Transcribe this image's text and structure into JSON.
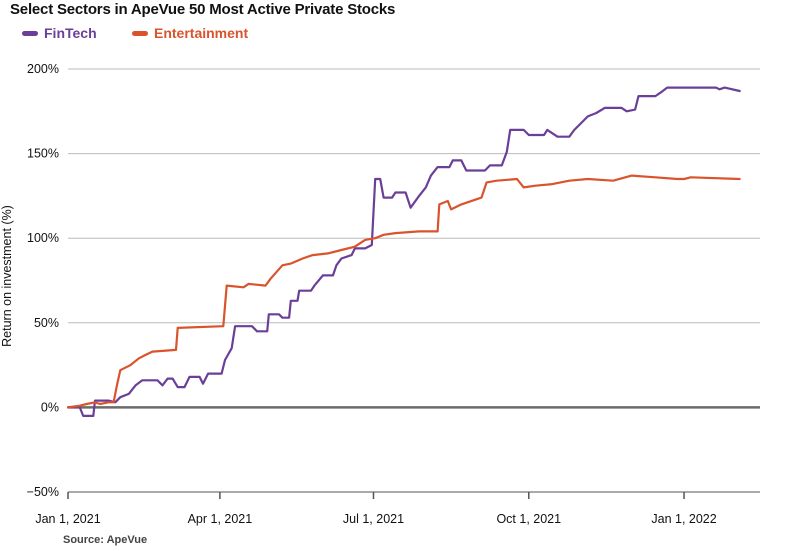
{
  "colors": {
    "fintech": "#6b3f98",
    "entertainment": "#d9542c",
    "grid": "#bbbbbb",
    "zero": "#6b6b6b",
    "axis": "#555555"
  },
  "chart_data": {
    "type": "line",
    "title": "Select Sectors in ApeVue 50 Most Active Private Stocks",
    "ylabel": "Return on investment (%)",
    "xlabel": "",
    "source": "Source: ApeVue",
    "ylim": [
      -50,
      200
    ],
    "xlim": [
      "2021-01-01",
      "2022-02-15"
    ],
    "y_ticks": [
      -50,
      0,
      50,
      100,
      150,
      200
    ],
    "y_tick_labels": [
      "−50%",
      "0%",
      "50%",
      "100%",
      "150%",
      "200%"
    ],
    "x_ticks": [
      "2021-01-01",
      "2021-04-01",
      "2021-07-01",
      "2021-10-01",
      "2022-01-01"
    ],
    "x_tick_labels": [
      "Jan 1, 2021",
      "Apr 1, 2021",
      "Jul 1, 2021",
      "Oct 1, 2021",
      "Jan 1, 2022"
    ],
    "grid": true,
    "legend_position": "top-left",
    "series": [
      {
        "name": "FinTech",
        "color": "#6b3f98",
        "points": [
          [
            "2021-01-01",
            0
          ],
          [
            "2021-01-08",
            0
          ],
          [
            "2021-01-10",
            -5
          ],
          [
            "2021-01-16",
            -5
          ],
          [
            "2021-01-17",
            4
          ],
          [
            "2021-01-25",
            4
          ],
          [
            "2021-01-29",
            3
          ],
          [
            "2021-02-01",
            6
          ],
          [
            "2021-02-06",
            8
          ],
          [
            "2021-02-10",
            13
          ],
          [
            "2021-02-14",
            16
          ],
          [
            "2021-02-23",
            16
          ],
          [
            "2021-02-26",
            13
          ],
          [
            "2021-03-01",
            17
          ],
          [
            "2021-03-04",
            17
          ],
          [
            "2021-03-07",
            12
          ],
          [
            "2021-03-11",
            12
          ],
          [
            "2021-03-14",
            18
          ],
          [
            "2021-03-20",
            18
          ],
          [
            "2021-03-22",
            14
          ],
          [
            "2021-03-25",
            20
          ],
          [
            "2021-04-02",
            20
          ],
          [
            "2021-04:04",
            28
          ],
          [
            "2021-04-08",
            35
          ],
          [
            "2021-04-10",
            48
          ],
          [
            "2021-04-20",
            48
          ],
          [
            "2021-04-23",
            45
          ],
          [
            "2021-04-29",
            45
          ],
          [
            "2021-04-30",
            55
          ],
          [
            "2021-05-06",
            55
          ],
          [
            "2021-05-08",
            53
          ],
          [
            "2021-05-12",
            53
          ],
          [
            "2021-05-13",
            63
          ],
          [
            "2021-05-17",
            63
          ],
          [
            "2021-05-18",
            69
          ],
          [
            "2021-05-25",
            69
          ],
          [
            "2021-05-27",
            72
          ],
          [
            "2021-06-01",
            78
          ],
          [
            "2021-06-07",
            78
          ],
          [
            "2021-06-09",
            84
          ],
          [
            "2021-06-12",
            88
          ],
          [
            "2021-06-18",
            90
          ],
          [
            "2021-06-20",
            94
          ],
          [
            "2021-06-26",
            94
          ],
          [
            "2021-06-30",
            96
          ],
          [
            "2021-07-02",
            135
          ],
          [
            "2021-07-05",
            135
          ],
          [
            "2021-07-07",
            124
          ],
          [
            "2021-07-12",
            124
          ],
          [
            "2021-07-14",
            127
          ],
          [
            "2021-07-20",
            127
          ],
          [
            "2021-07-23",
            118
          ],
          [
            "2021-07-28",
            125
          ],
          [
            "2021-08-01",
            130
          ],
          [
            "2021-08-04",
            137
          ],
          [
            "2021-08-08",
            142
          ],
          [
            "2021-08-15",
            142
          ],
          [
            "2021-08-17",
            146
          ],
          [
            "2021-08-22",
            146
          ],
          [
            "2021-08-25",
            140
          ],
          [
            "2021-09-01",
            140
          ],
          [
            "2021-09-05",
            140
          ],
          [
            "2021-09-08",
            143
          ],
          [
            "2021-09-15",
            143
          ],
          [
            "2021-09-18",
            151
          ],
          [
            "2021-09-20",
            164
          ],
          [
            "2021-09-28",
            164
          ],
          [
            "2021-10-01",
            161
          ],
          [
            "2021-10-10",
            161
          ],
          [
            "2021-10-12",
            164
          ],
          [
            "2021-10-18",
            160
          ],
          [
            "2021-10-25",
            160
          ],
          [
            "2021-10-28",
            164
          ],
          [
            "2021-11-01",
            168
          ],
          [
            "2021-11-05",
            172
          ],
          [
            "2021-11-10",
            174
          ],
          [
            "2021-11-15",
            177
          ],
          [
            "2021-11-25",
            177
          ],
          [
            "2021-11-28",
            175
          ],
          [
            "2021-12-03",
            176
          ],
          [
            "2021-12-05",
            184
          ],
          [
            "2021-12-15",
            184
          ],
          [
            "2021-12-18",
            186
          ],
          [
            "2021-12-22",
            189
          ],
          [
            "2022-01-20",
            189
          ],
          [
            "2022-01-22",
            188
          ],
          [
            "2022-01-25",
            189
          ],
          [
            "2022-02-03",
            187
          ]
        ]
      },
      {
        "name": "Entertainment",
        "color": "#d9542c",
        "points": [
          [
            "2021-01-01",
            0
          ],
          [
            "2021-01-08",
            1
          ],
          [
            "2021-01-12",
            2
          ],
          [
            "2021-01-17",
            3
          ],
          [
            "2021-01-20",
            2
          ],
          [
            "2021-01-25",
            3
          ],
          [
            "2021-01-28",
            3
          ],
          [
            "2021-01-30",
            13
          ],
          [
            "2021-02-01",
            22
          ],
          [
            "2021-02-07",
            25
          ],
          [
            "2021-02-12",
            29
          ],
          [
            "2021-02-16",
            31
          ],
          [
            "2021-02-20",
            33
          ],
          [
            "2021-03-06",
            34
          ],
          [
            "2021-03-07",
            47
          ],
          [
            "2021-04-03",
            48
          ],
          [
            "2021-04-05",
            72
          ],
          [
            "2021-04-15",
            71
          ],
          [
            "2021-04-18",
            73
          ],
          [
            "2021-04-28",
            72
          ],
          [
            "2021-05-01",
            76
          ],
          [
            "2021-05-08",
            84
          ],
          [
            "2021-05-13",
            85
          ],
          [
            "2021-05-20",
            88
          ],
          [
            "2021-05-26",
            90
          ],
          [
            "2021-06-04",
            91
          ],
          [
            "2021-06-12",
            93
          ],
          [
            "2021-06-20",
            95
          ],
          [
            "2021-06-26",
            99
          ],
          [
            "2021-07-02",
            100
          ],
          [
            "2021-07-07",
            102
          ],
          [
            "2021-07-14",
            103
          ],
          [
            "2021-07-28",
            104
          ],
          [
            "2021-08-08",
            104
          ],
          [
            "2021-08-09",
            120
          ],
          [
            "2021-08-14",
            122
          ],
          [
            "2021-08-16",
            117
          ],
          [
            "2021-08-22",
            120
          ],
          [
            "2021-09-03",
            124
          ],
          [
            "2021-09-06",
            133
          ],
          [
            "2021-09-12",
            134
          ],
          [
            "2021-09-24",
            135
          ],
          [
            "2021-09-28",
            130
          ],
          [
            "2021-10-05",
            131
          ],
          [
            "2021-10-15",
            132
          ],
          [
            "2021-10-25",
            134
          ],
          [
            "2021-11-05",
            135
          ],
          [
            "2021-11-20",
            134
          ],
          [
            "2021-12-01",
            137
          ],
          [
            "2021-12-15",
            136
          ],
          [
            "2021-12-28",
            135
          ],
          [
            "2022-01-01",
            135
          ],
          [
            "2022-01-05",
            136
          ],
          [
            "2022-02-03",
            135
          ]
        ]
      }
    ]
  }
}
